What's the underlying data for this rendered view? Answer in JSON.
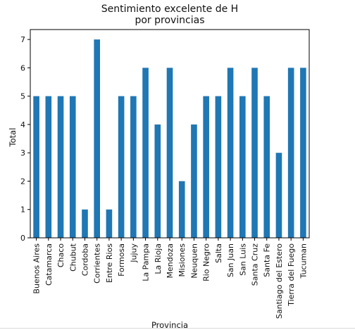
{
  "chart_data": {
    "type": "bar",
    "title": [
      "Sentimiento excelente de H",
      "por provincias"
    ],
    "xlabel": "Provincia",
    "ylabel": "Total",
    "categories": [
      "Buenos Aires",
      "Catamarca",
      "Chaco",
      "Chubut",
      "Cordoba",
      "Corrientes",
      "Entre Rios",
      "Formosa",
      "Jujuy",
      "La Pampa",
      "La Rioja",
      "Mendoza",
      "Misiones",
      "Neuquen",
      "Rio Negro",
      "Salta",
      "San Juan",
      "San Luis",
      "Santa Cruz",
      "Santa Fe",
      "Santiago del Estero",
      "Tierra del Fuego",
      "Tucuman"
    ],
    "values": [
      5,
      5,
      5,
      5,
      1,
      7,
      1,
      5,
      5,
      6,
      4,
      6,
      2,
      4,
      5,
      5,
      6,
      5,
      6,
      5,
      3,
      6,
      6
    ],
    "ylim": [
      0,
      7.35
    ],
    "yticks": [
      0,
      1,
      2,
      3,
      4,
      5,
      6,
      7
    ],
    "bar_color": "#1f77b4",
    "grid": false
  }
}
